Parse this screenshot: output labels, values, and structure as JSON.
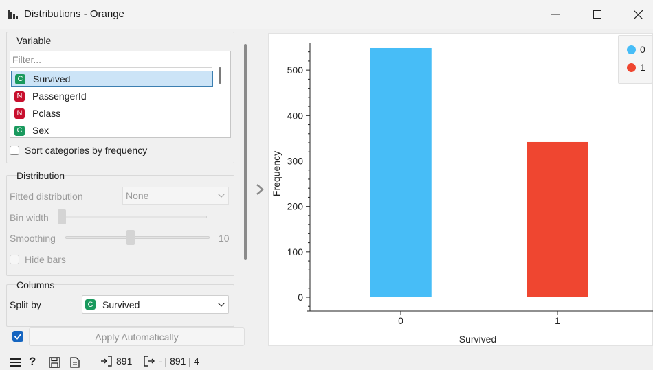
{
  "window": {
    "title": "Distributions - Orange",
    "app_icon": "histogram-icon",
    "controls": [
      "minimize-icon",
      "maximize-icon",
      "close-icon"
    ]
  },
  "variable": {
    "title": "Variable",
    "filter_placeholder": "Filter...",
    "items": [
      {
        "type": "C",
        "name": "Survived",
        "selected": true
      },
      {
        "type": "N",
        "name": "PassengerId",
        "selected": false
      },
      {
        "type": "N",
        "name": "Pclass",
        "selected": false
      },
      {
        "type": "C",
        "name": "Sex",
        "selected": false
      }
    ],
    "sort_label": "Sort categories by frequency"
  },
  "distribution": {
    "title": "Distribution",
    "fitted_label": "Fitted distribution",
    "fitted_value": "None",
    "bin_width_label": "Bin width",
    "bin_width_level": 0.0,
    "smoothing_label": "Smoothing",
    "smoothing_value": "10",
    "smoothing_level": 0.45,
    "hide_bars_label": "Hide bars"
  },
  "columns": {
    "title": "Columns",
    "split_label": "Split by",
    "split_type": "C",
    "split_value": "Survived"
  },
  "apply": {
    "label": "Apply Automatically",
    "checked": true
  },
  "colors": {
    "series_0": "#47bdf7",
    "series_1": "#ef4630",
    "accent": "#1565c0"
  },
  "status": {
    "input_count": "891",
    "output_text": "- | 891 | 4"
  },
  "chart_data": {
    "type": "bar",
    "categories": [
      "0",
      "1"
    ],
    "values": [
      549,
      342
    ],
    "xlabel": "Survived",
    "ylabel": "Frequency",
    "ylim": [
      -30,
      560
    ],
    "yticks": [
      0,
      100,
      200,
      300,
      400,
      500
    ],
    "legend": [
      {
        "name": "0",
        "color": "#47bdf7"
      },
      {
        "name": "1",
        "color": "#ef4630"
      }
    ],
    "legend_position": "top-right",
    "grid": false
  }
}
